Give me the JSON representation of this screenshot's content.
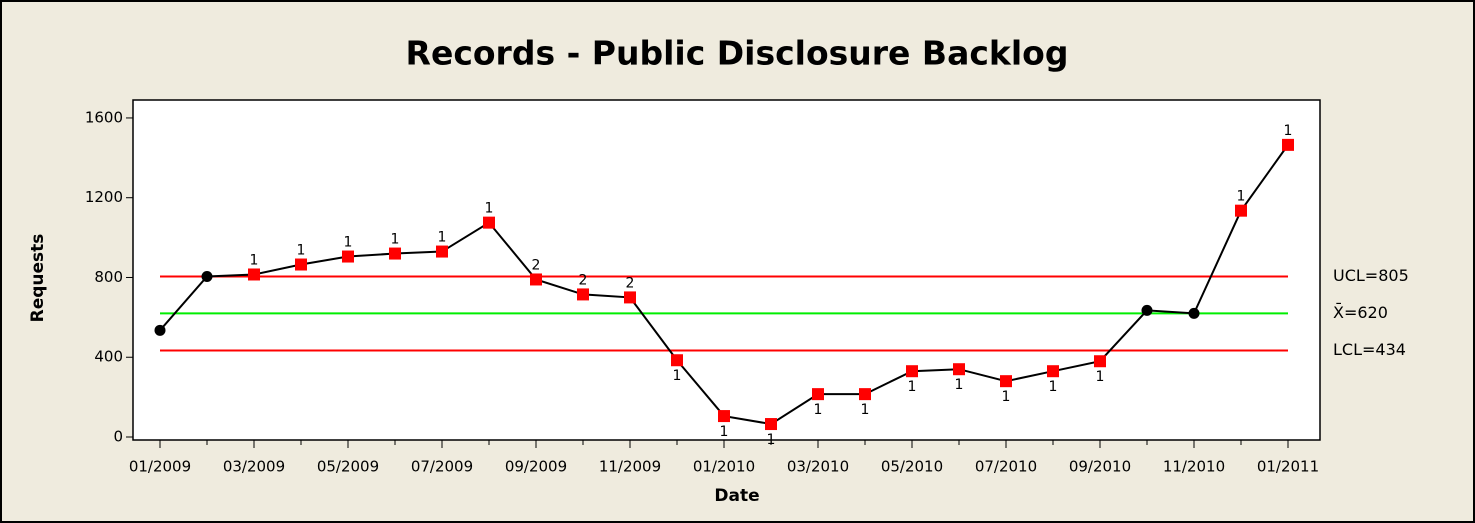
{
  "chart_data": {
    "type": "control",
    "title": "Records - Public Disclosure Backlog",
    "x_label": "Date",
    "y_label": "Requests",
    "categories": [
      "01/2009",
      null,
      "03/2009",
      null,
      "05/2009",
      null,
      "07/2009",
      null,
      "09/2009",
      null,
      "11/2009",
      null,
      "01/2010",
      null,
      "03/2010",
      null,
      "05/2010",
      null,
      "07/2010",
      null,
      "09/2010",
      null,
      "11/2010",
      null,
      "01/2011"
    ],
    "values": [
      535,
      805,
      815,
      865,
      905,
      920,
      930,
      1075,
      790,
      715,
      700,
      385,
      105,
      65,
      215,
      215,
      330,
      340,
      280,
      330,
      380,
      635,
      620,
      1135,
      1465
    ],
    "flags": [
      null,
      null,
      "1",
      "1",
      "1",
      "1",
      "1",
      "1",
      "2",
      "2",
      "2",
      "1",
      "1",
      "1",
      "1",
      "1",
      "1",
      "1",
      "1",
      "1",
      "1",
      null,
      null,
      "1",
      "1"
    ],
    "limits": [
      {
        "value": 805,
        "label": "UCL=805"
      },
      {
        "value": 620,
        "label": "X̄=620"
      },
      {
        "value": 434,
        "label": "LCL=434"
      }
    ],
    "limit_colors": [
      "#ff0000",
      "#00ee00",
      "#ff0000"
    ],
    "line_color": "#000000",
    "marker_color": "#000000",
    "flag_marker_color": "#ff0000",
    "ylim": [
      -15,
      1690
    ],
    "yticks": [
      0,
      400,
      800,
      1200,
      1600
    ]
  }
}
